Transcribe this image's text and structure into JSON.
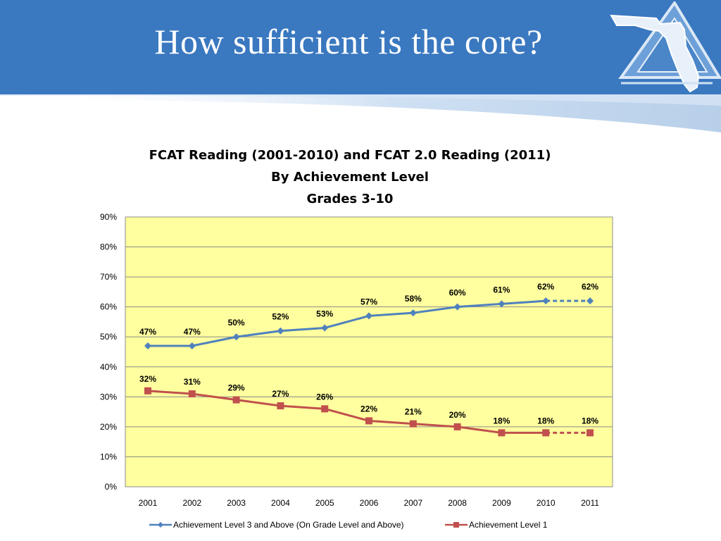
{
  "slide": {
    "title": "How sufficient is the core?"
  },
  "logo": {
    "icon": "florida-state-logo-icon"
  },
  "colors": {
    "banner": "#3a78c0",
    "plot_background": "#ffff9f",
    "series_1": "#4f81bd",
    "series_2": "#c0504d"
  },
  "chart_data": {
    "type": "line",
    "title_lines": [
      "FCAT Reading (2001-2010) and FCAT 2.0 Reading (2011)",
      "By Achievement Level",
      "Grades 3-10"
    ],
    "xlabel": "",
    "ylabel": "",
    "categories": [
      "2001",
      "2002",
      "2003",
      "2004",
      "2005",
      "2006",
      "2007",
      "2008",
      "2009",
      "2010",
      "2011"
    ],
    "y_ticks": [
      "0%",
      "10%",
      "20%",
      "30%",
      "40%",
      "50%",
      "60%",
      "70%",
      "80%",
      "90%"
    ],
    "ylim": [
      0,
      90
    ],
    "grid": true,
    "legend_position": "bottom",
    "series": [
      {
        "name": "Achievement Level 3 and Above (On Grade Level and Above)",
        "marker": "diamond",
        "values": [
          47,
          47,
          50,
          52,
          53,
          57,
          58,
          60,
          61,
          62,
          62
        ],
        "labels": [
          "47%",
          "47%",
          "50%",
          "52%",
          "53%",
          "57%",
          "58%",
          "60%",
          "61%",
          "62%",
          "62%"
        ],
        "dashed_from_index": 9
      },
      {
        "name": "Achievement Level 1",
        "marker": "square",
        "values": [
          32,
          31,
          29,
          27,
          26,
          22,
          21,
          20,
          18,
          18,
          18
        ],
        "labels": [
          "32%",
          "31%",
          "29%",
          "27%",
          "26%",
          "22%",
          "21%",
          "20%",
          "18%",
          "18%",
          "18%"
        ],
        "dashed_from_index": 9
      }
    ]
  }
}
